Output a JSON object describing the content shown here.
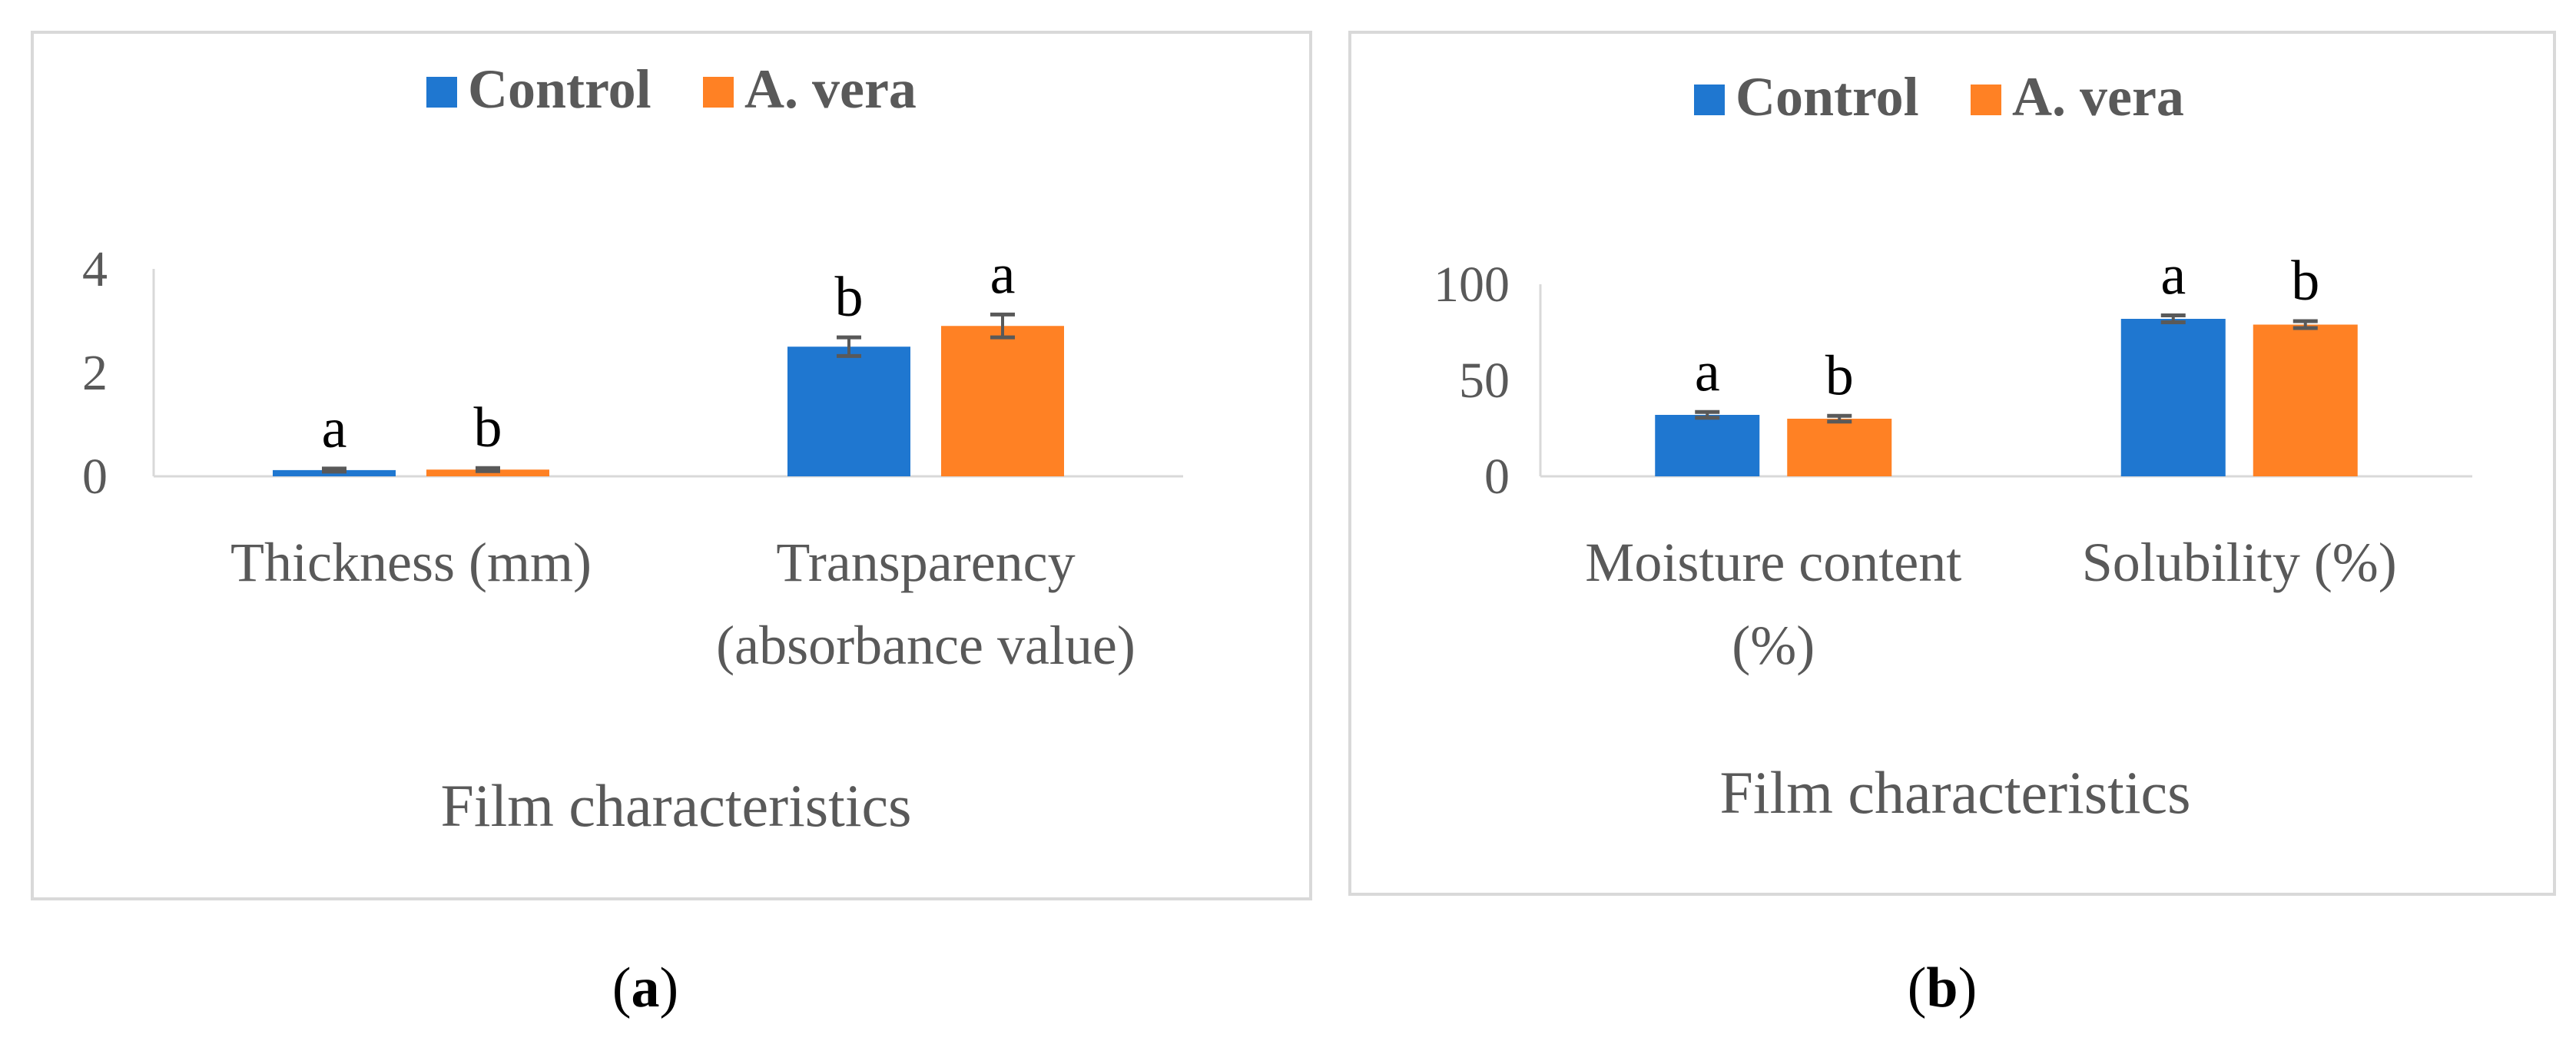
{
  "chart_data": [
    {
      "type": "bar",
      "panel_label": "a",
      "categories": [
        [
          "Thickness (mm)"
        ],
        [
          "Transparency",
          "(absorbance value)"
        ]
      ],
      "series": [
        {
          "name": "Control",
          "color": "#1f77d0",
          "values": [
            0.12,
            2.5
          ],
          "errors": [
            0.03,
            0.18
          ],
          "significance": [
            "a",
            "b"
          ]
        },
        {
          "name": "A. vera",
          "color": "#ff8124",
          "values": [
            0.13,
            2.9
          ],
          "errors": [
            0.03,
            0.22
          ],
          "significance": [
            "b",
            "a"
          ]
        }
      ],
      "yticks": [
        0,
        2,
        4
      ],
      "ylim": [
        0,
        4
      ],
      "xlabel": "Film characteristics",
      "ylabel": "",
      "legend_position": "top"
    },
    {
      "type": "bar",
      "panel_label": "b",
      "categories": [
        [
          "Moisture content",
          "(%)"
        ],
        [
          "Solubility (%)"
        ]
      ],
      "series": [
        {
          "name": "Control",
          "color": "#1f77d0",
          "values": [
            32,
            82
          ],
          "errors": [
            1.5,
            1.8
          ],
          "significance": [
            "a",
            "a"
          ]
        },
        {
          "name": "A. vera",
          "color": "#ff8124",
          "values": [
            30,
            79
          ],
          "errors": [
            1.5,
            1.8
          ],
          "significance": [
            "b",
            "b"
          ]
        }
      ],
      "yticks": [
        0,
        50,
        100
      ],
      "ylim": [
        0,
        100
      ],
      "xlabel": "Film characteristics",
      "ylabel": "",
      "legend_position": "top"
    }
  ]
}
